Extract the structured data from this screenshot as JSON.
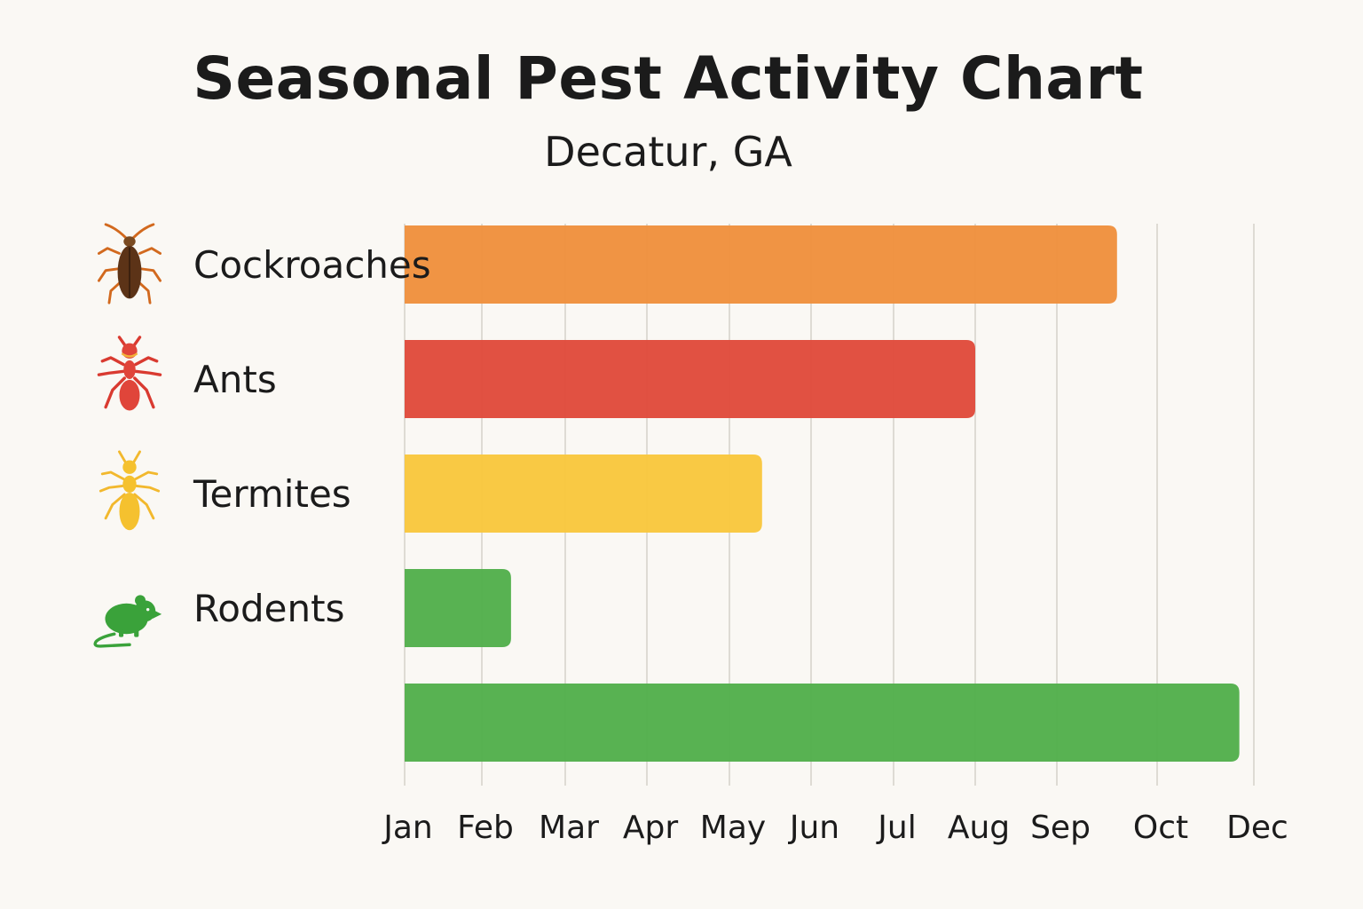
{
  "colors": {
    "background": "#faf8f4",
    "gridline": "#dedbd4",
    "orange": "#f0913e",
    "red": "#e04b3c",
    "yellow": "#f9c73e",
    "green": "#53b04c",
    "cockroach_body": "#5c3317"
  },
  "chart_data": {
    "type": "bar",
    "orientation": "horizontal",
    "title": "Seasonal Pest Activity Chart",
    "subtitle": "Decatur, GA",
    "xlabel": "",
    "ylabel": "",
    "x_tick_labels": [
      "Jan",
      "Feb",
      "Mar",
      "Apr",
      "May",
      "Jun",
      "Jul",
      "Aug",
      "Sep",
      "Oct",
      "Dec"
    ],
    "xlim": [
      0,
      10.6
    ],
    "grid": true,
    "legend": "none",
    "bars": [
      {
        "label": "Cockroaches",
        "icon": "cockroach-icon",
        "start": 0,
        "end": 8.6,
        "color": "#f0913e"
      },
      {
        "label": "Ants",
        "icon": "ant-icon",
        "start": 0,
        "end": 7.0,
        "color": "#e04b3c"
      },
      {
        "label": "Termites",
        "icon": "termite-icon",
        "start": 0,
        "end": 4.4,
        "color": "#f9c73e"
      },
      {
        "label": "Rodents",
        "icon": "rodent-icon",
        "start": 0,
        "end": 1.35,
        "color": "#53b04c"
      },
      {
        "label": "",
        "icon": "",
        "start": 0,
        "end": 9.85,
        "color": "#53b04c"
      }
    ]
  }
}
